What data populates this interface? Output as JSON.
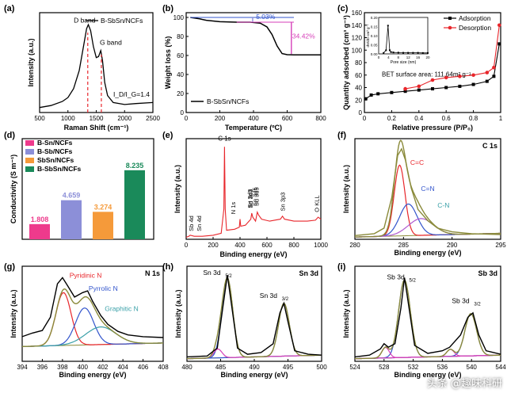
{
  "colors": {
    "black": "#000000",
    "red": "#e8262b",
    "magenta": "#d63fb8",
    "blue": "#3355cc",
    "olive": "#8a8a3a",
    "purple": "#b05ad0",
    "teal": "#3aa0a8",
    "cyan": "#2fa6d8",
    "pink": "#ee3a8c",
    "lavender": "#8c8fd8",
    "orange": "#f59a3a",
    "green": "#1a8a5a"
  },
  "watermark": "头条 @趣味科研",
  "chart_data": [
    {
      "id": "a",
      "panel_label": "(a)",
      "type": "line",
      "xlabel": "Raman Shift (cm⁻¹)",
      "ylabel": "Intensity (a.u.)",
      "xlim": [
        500,
        2500
      ],
      "xticks": [
        500,
        1000,
        1500,
        2000,
        2500
      ],
      "legend": "B-SbSn/NCFs",
      "annotations": {
        "d_band": "D band",
        "g_band": "G band",
        "ratio_label": "I_D/I_G=1.4",
        "d_band_pos": 1350,
        "g_band_pos": 1590
      },
      "series": [
        {
          "name": "B-SbSn/NCFs",
          "x": [
            500,
            700,
            900,
            1000,
            1100,
            1200,
            1280,
            1330,
            1360,
            1400,
            1450,
            1500,
            1540,
            1580,
            1610,
            1650,
            1700,
            1800,
            2000,
            2200,
            2500
          ],
          "y": [
            0.05,
            0.07,
            0.11,
            0.15,
            0.24,
            0.42,
            0.68,
            0.84,
            0.88,
            0.82,
            0.66,
            0.55,
            0.56,
            0.62,
            0.52,
            0.3,
            0.17,
            0.1,
            0.08,
            0.09,
            0.1
          ]
        }
      ]
    },
    {
      "id": "b",
      "panel_label": "(b)",
      "type": "line",
      "xlabel": "Temperature (ºC)",
      "ylabel": "Weight loss (%)",
      "xlim": [
        0,
        800
      ],
      "xticks": [
        0,
        200,
        400,
        600,
        800
      ],
      "ylim": [
        0,
        105
      ],
      "yticks": [
        0,
        20,
        40,
        60,
        80,
        100
      ],
      "legend": "B-SbSn/NCFs",
      "annotations": {
        "loss1": "5.03%",
        "loss2": "34.42%"
      },
      "series": [
        {
          "name": "B-SbSn/NCFs",
          "x": [
            25,
            80,
            120,
            200,
            300,
            380,
            440,
            480,
            510,
            540,
            570,
            600,
            640,
            700,
            800
          ],
          "y": [
            100,
            98.5,
            97,
            95.5,
            95,
            94.97,
            94,
            90,
            82,
            70,
            62,
            60.8,
            60.6,
            60.55,
            60.55
          ]
        }
      ]
    },
    {
      "id": "c",
      "panel_label": "(c)",
      "type": "line",
      "xlabel": "Relative pressure (P/P₀)",
      "ylabel": "Quantity adsorbed (cm³ g⁻¹)",
      "xlim": [
        0,
        1
      ],
      "xticks": [
        0.0,
        0.2,
        0.4,
        0.6,
        0.8,
        1.0
      ],
      "ylim": [
        0,
        160
      ],
      "yticks": [
        0,
        20,
        40,
        60,
        80,
        100,
        120,
        140,
        160
      ],
      "annotations": {
        "bet": "BET surface area:  111.64m² g⁻¹"
      },
      "series": [
        {
          "name": "Adsorption",
          "x": [
            0.01,
            0.05,
            0.1,
            0.2,
            0.3,
            0.4,
            0.5,
            0.6,
            0.7,
            0.8,
            0.9,
            0.95,
            0.99
          ],
          "y": [
            22,
            28,
            30,
            32,
            34,
            36,
            38,
            40,
            42,
            45,
            50,
            58,
            110
          ]
        },
        {
          "name": "Desorption",
          "x": [
            0.3,
            0.4,
            0.5,
            0.6,
            0.7,
            0.8,
            0.9,
            0.95,
            0.99
          ],
          "y": [
            38,
            42,
            52,
            56,
            58,
            60,
            64,
            72,
            140
          ]
        }
      ],
      "inset": {
        "xlabel": "Pore size (nm)",
        "ylabel": "dV/dD cm³ g⁻¹",
        "xlim": [
          0,
          20
        ],
        "xticks": [
          0,
          4,
          8,
          12,
          16,
          20
        ],
        "ylim": [
          0,
          0.2
        ],
        "yticks": [
          0.0,
          0.05,
          0.1,
          0.15,
          0.2
        ],
        "x": [
          2,
          3,
          3.8,
          4.5,
          5,
          6,
          8,
          10,
          12,
          14,
          16,
          18,
          20
        ],
        "y": [
          0.005,
          0.02,
          0.155,
          0.02,
          0.01,
          0.008,
          0.007,
          0.006,
          0.006,
          0.006,
          0.006,
          0.005,
          0.005
        ]
      }
    },
    {
      "id": "d",
      "panel_label": "(d)",
      "type": "bar",
      "ylabel": "Conductivity (S m⁻¹)",
      "categories": [
        "B-Sn/NCFs",
        "B-Sb/NCFs",
        "SbSn/NCFs",
        "B-SbSn/NCFs"
      ],
      "values": [
        1.808,
        4.659,
        3.274,
        8.235
      ],
      "value_labels": [
        "1.808",
        "4.659",
        "3.274",
        "8.235"
      ],
      "ylim": [
        0,
        12
      ]
    },
    {
      "id": "e",
      "panel_label": "(e)",
      "type": "line",
      "xlabel": "Binding energy (eV)",
      "ylabel": "Intensity (a.u.)",
      "xlim": [
        0,
        1000
      ],
      "xticks": [
        0,
        200,
        400,
        600,
        800,
        1000
      ],
      "peak_labels": [
        {
          "text": "Sb 4d",
          "x": 32
        },
        {
          "text": "Sn 4d",
          "x": 26
        },
        {
          "text": "C 1s",
          "x": 285
        },
        {
          "text": "N 1s",
          "x": 400
        },
        {
          "text": "Sn 3d3",
          "x": 487
        },
        {
          "text": "Sd 3d3",
          "x": 495
        },
        {
          "text": "Sn 3d5",
          "x": 528
        },
        {
          "text": "Sd 3d5",
          "x": 538
        },
        {
          "text": "Sn 3p3",
          "x": 715
        },
        {
          "text": "O KLL",
          "x": 980
        }
      ],
      "series": [
        {
          "name": "survey",
          "x": [
            0,
            20,
            30,
            60,
            120,
            200,
            260,
            280,
            285,
            290,
            300,
            360,
            395,
            400,
            405,
            440,
            480,
            487,
            495,
            515,
            528,
            538,
            560,
            620,
            700,
            715,
            730,
            800,
            900,
            960,
            980,
            1000
          ],
          "y": [
            0.02,
            0.03,
            0.04,
            0.03,
            0.03,
            0.04,
            0.06,
            0.3,
            0.92,
            0.3,
            0.09,
            0.1,
            0.12,
            0.2,
            0.13,
            0.14,
            0.2,
            0.26,
            0.22,
            0.18,
            0.27,
            0.24,
            0.2,
            0.18,
            0.2,
            0.23,
            0.2,
            0.18,
            0.18,
            0.19,
            0.22,
            0.2
          ]
        }
      ]
    },
    {
      "id": "f",
      "panel_label": "(f)",
      "type": "line",
      "title": "C 1s",
      "xlabel": "Binding energy (eV)",
      "ylabel": "Intensity (a.u.)",
      "xlim": [
        280,
        295
      ],
      "xticks": [
        280,
        285,
        290,
        295
      ],
      "component_labels": [
        "C=C",
        "C=N",
        "C-N"
      ],
      "series": [
        {
          "name": "raw",
          "x": [
            280,
            282,
            283,
            283.8,
            284.4,
            284.8,
            285.2,
            285.8,
            286.5,
            287.5,
            288.5,
            290,
            292,
            295
          ],
          "y": [
            0.04,
            0.06,
            0.12,
            0.45,
            0.9,
            0.97,
            0.85,
            0.55,
            0.32,
            0.2,
            0.12,
            0.08,
            0.06,
            0.05
          ]
        },
        {
          "name": "C=C",
          "center": 284.6,
          "height": 0.76,
          "width": 0.55
        },
        {
          "name": "C=N",
          "center": 285.5,
          "height": 0.34,
          "width": 0.9
        },
        {
          "name": "C-N",
          "center": 286.8,
          "height": 0.18,
          "width": 1.3
        }
      ]
    },
    {
      "id": "g",
      "panel_label": "(g)",
      "type": "line",
      "title": "N 1s",
      "xlabel": "Binding energy (eV)",
      "ylabel": "Intensity (a.u.)",
      "xlim": [
        394,
        408
      ],
      "xticks": [
        394,
        396,
        398,
        400,
        402,
        404,
        406,
        408
      ],
      "component_labels": [
        "Pyridinic N",
        "Pyrrolic N",
        "Graphitic N"
      ],
      "series": [
        {
          "name": "raw",
          "x": [
            394,
            395,
            396,
            396.8,
            397.5,
            398,
            398.5,
            399.2,
            400,
            400.5,
            401,
            401.8,
            402.5,
            403.5,
            404.5,
            406,
            408
          ],
          "y": [
            0.28,
            0.32,
            0.35,
            0.5,
            0.88,
            0.95,
            0.86,
            0.73,
            0.78,
            0.8,
            0.68,
            0.52,
            0.42,
            0.34,
            0.3,
            0.28,
            0.27
          ]
        },
        {
          "name": "Pyridinic N",
          "center": 398.1,
          "height": 0.6,
          "width": 0.75
        },
        {
          "name": "Pyrrolic N",
          "center": 400.2,
          "height": 0.42,
          "width": 0.9
        },
        {
          "name": "Graphitic N",
          "center": 401.8,
          "height": 0.2,
          "width": 1.5
        }
      ]
    },
    {
      "id": "h",
      "panel_label": "(h)",
      "type": "line",
      "title": "Sn 3d",
      "xlabel": "Binding energy (eV)",
      "ylabel": "Intensity (a.u.)",
      "xlim": [
        480,
        500
      ],
      "xticks": [
        480,
        485,
        490,
        495,
        500
      ],
      "component_labels": [
        "Sn 3d5/2",
        "Sn 3d3/2"
      ],
      "series": [
        {
          "name": "raw",
          "x": [
            480,
            483,
            484.5,
            485.3,
            486,
            486.7,
            487.5,
            489,
            491,
            492.8,
            493.8,
            494.4,
            495,
            496,
            498,
            500
          ],
          "y": [
            0.05,
            0.06,
            0.15,
            0.6,
            0.98,
            0.6,
            0.15,
            0.08,
            0.1,
            0.2,
            0.55,
            0.66,
            0.45,
            0.12,
            0.08,
            0.07
          ]
        },
        {
          "name": "Sn 3d5/2",
          "center": 486.0,
          "height": 0.9,
          "width": 0.8
        },
        {
          "name": "Sn 3d3/2",
          "center": 494.4,
          "height": 0.6,
          "width": 0.8
        },
        {
          "name": "shoulder",
          "center": 484.6,
          "height": 0.1,
          "width": 0.6
        }
      ]
    },
    {
      "id": "i",
      "panel_label": "(i)",
      "type": "line",
      "title": "Sb 3d",
      "xlabel": "Binding energy (eV)",
      "ylabel": "Intensity (a.u.)",
      "xlim": [
        524,
        544
      ],
      "xticks": [
        524,
        528,
        532,
        536,
        540,
        544
      ],
      "component_labels": [
        "Sb 3d5/2",
        "Sb 3d3/2"
      ],
      "series": [
        {
          "name": "raw",
          "x": [
            524,
            526,
            527.5,
            528,
            528.6,
            529.5,
            530.3,
            530.8,
            531.4,
            532.2,
            534,
            536,
            537,
            538.5,
            539.5,
            540.2,
            541,
            542,
            544
          ],
          "y": [
            0.05,
            0.07,
            0.14,
            0.2,
            0.16,
            0.2,
            0.6,
            0.95,
            0.62,
            0.18,
            0.09,
            0.12,
            0.16,
            0.3,
            0.5,
            0.55,
            0.3,
            0.12,
            0.08
          ]
        },
        {
          "name": "Sb 3d5/2",
          "center": 530.8,
          "height": 0.88,
          "width": 0.8
        },
        {
          "name": "Sb 3d3/2",
          "center": 539.9,
          "height": 0.48,
          "width": 0.8
        },
        {
          "name": "Sb-Sn 5/2",
          "center": 528.2,
          "height": 0.12,
          "width": 0.5
        },
        {
          "name": "Sb-Sn 3/2",
          "center": 537.1,
          "height": 0.08,
          "width": 0.5
        }
      ]
    }
  ]
}
